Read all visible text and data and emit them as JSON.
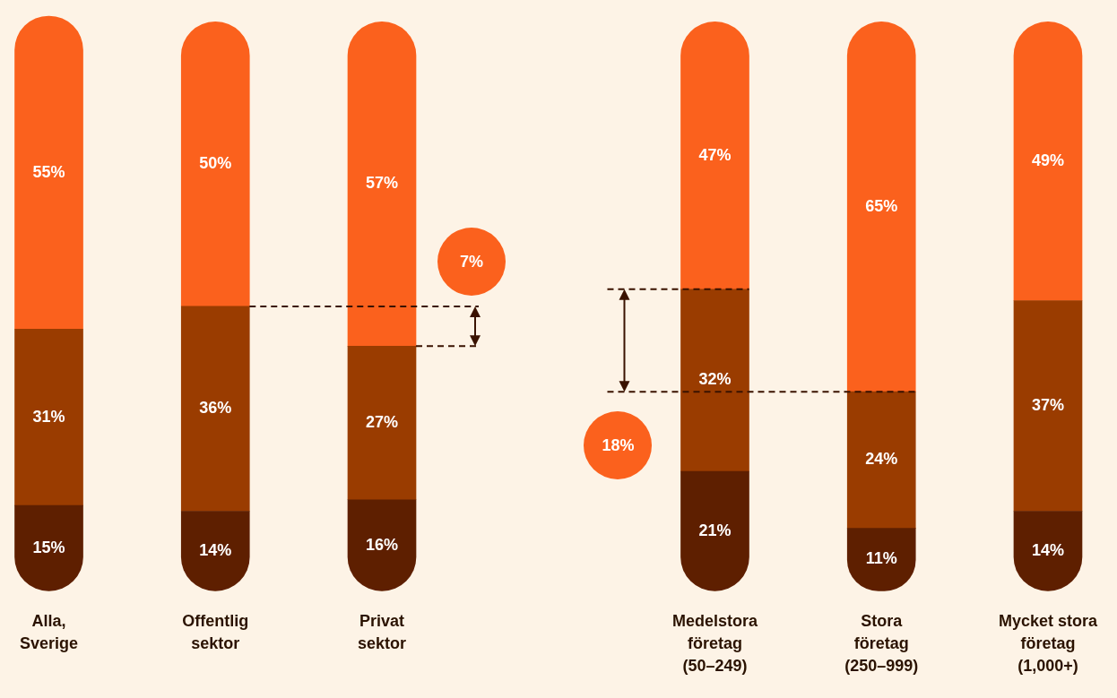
{
  "chart_data": {
    "type": "bar",
    "stacked": true,
    "categories": [
      "Alla,\nSverige",
      "Offentlig\nsektor",
      "Privat\nsektor",
      null,
      "Medelstora\nföretag\n(50–249)",
      "Stora\nföretag\n(250–999)",
      "Mycket stora\nföretag\n(1,000+)"
    ],
    "ylim": [
      0,
      101
    ],
    "tick_labels": "x",
    "grid": false,
    "legend": false,
    "series": [
      {
        "color": "#5e1f00",
        "values": [
          15,
          14,
          16,
          null,
          21,
          11,
          14
        ],
        "value_labels": [
          "15%",
          "14%",
          "16%",
          null,
          "21%",
          "11%",
          "14%"
        ]
      },
      {
        "color": "#9a3c00",
        "values": [
          31,
          36,
          27,
          null,
          32,
          24,
          37
        ],
        "value_labels": [
          "31%",
          "36%",
          "27%",
          null,
          "32%",
          "24%",
          "37%"
        ]
      },
      {
        "color": "#fb611d",
        "values": [
          55,
          50,
          57,
          null,
          47,
          65,
          49
        ],
        "value_labels": [
          "55%",
          "50%",
          "57%",
          null,
          "47%",
          "65%",
          "49%"
        ]
      }
    ],
    "annotations": [
      "7%",
      "18%"
    ]
  }
}
